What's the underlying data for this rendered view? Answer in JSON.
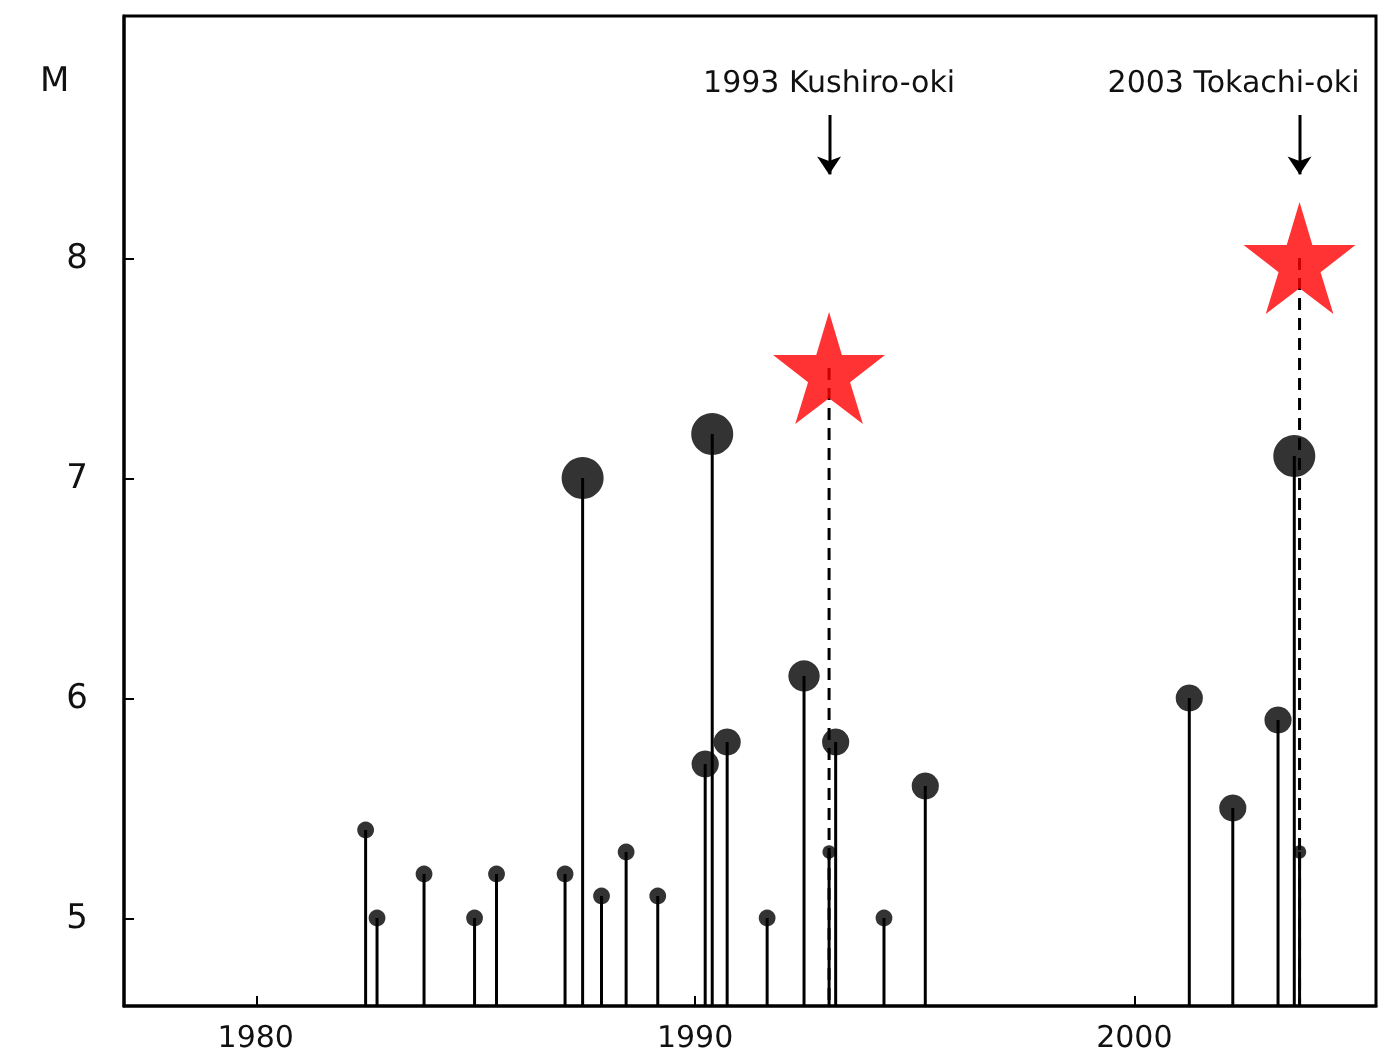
{
  "chart_data": {
    "type": "lollipop",
    "ylabel": "M",
    "xlim": [
      1977.0,
      2005.5
    ],
    "xticks": [
      1980,
      1990,
      2000
    ],
    "ylim": [
      4.6,
      9.1
    ],
    "yticks": [
      5,
      6,
      7,
      8
    ],
    "grid": false,
    "marker": "circle",
    "series": [
      {
        "color": "#000000",
        "line_style": "solid",
        "sizes": [
          0.16,
          0.16,
          0.16,
          0.16,
          0.16,
          0.16,
          1,
          0.16,
          0.16,
          0.16,
          0.42,
          1,
          0.42,
          0.16,
          0.56,
          0.1,
          0.42,
          0.16,
          0.42,
          0.42,
          0.42,
          0.42,
          1,
          0.1
        ],
        "x": [
          1982.5,
          1982.76,
          1983.83,
          1984.98,
          1985.48,
          1987.04,
          1987.44,
          1987.87,
          1988.43,
          1989.15,
          1990.23,
          1990.39,
          1990.73,
          1991.64,
          1992.48,
          1993.05,
          1993.2,
          1994.3,
          1995.24,
          2001.25,
          2002.24,
          2003.27,
          2003.64,
          2003.76
        ],
        "values": [
          5.4,
          5.0,
          5.2,
          5.0,
          5.2,
          5.2,
          7.0,
          5.1,
          5.3,
          5.1,
          5.7,
          7.2,
          5.8,
          5.0,
          6.1,
          5.3,
          5.8,
          5.0,
          5.6,
          6.0,
          5.5,
          5.9,
          7.1,
          5.3
        ]
      },
      {
        "color": "#ff0000",
        "marker": "star",
        "line_style": "dashed",
        "x": [
          1993.05,
          2003.76
        ],
        "values": [
          7.5,
          8.0
        ]
      }
    ],
    "annotations": [
      "1993 Kushiro-oki",
      "2003 Tokachi-oki"
    ]
  }
}
